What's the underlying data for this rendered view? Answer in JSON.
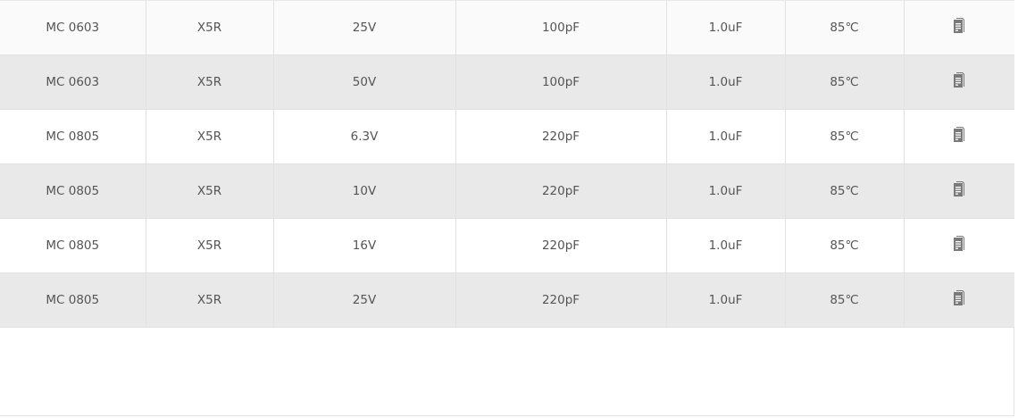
{
  "table": {
    "rows": [
      {
        "series": "MC 0603",
        "dielectric": "X5R",
        "voltage": "25V",
        "cap_min": "100pF",
        "cap_max": "1.0uF",
        "temp": "85℃",
        "icon": "document-icon"
      },
      {
        "series": "MC 0603",
        "dielectric": "X5R",
        "voltage": "50V",
        "cap_min": "100pF",
        "cap_max": "1.0uF",
        "temp": "85℃",
        "icon": "document-icon"
      },
      {
        "series": "MC 0805",
        "dielectric": "X5R",
        "voltage": "6.3V",
        "cap_min": "220pF",
        "cap_max": "1.0uF",
        "temp": "85℃",
        "icon": "document-icon"
      },
      {
        "series": "MC 0805",
        "dielectric": "X5R",
        "voltage": "10V",
        "cap_min": "220pF",
        "cap_max": "1.0uF",
        "temp": "85℃",
        "icon": "document-icon"
      },
      {
        "series": "MC 0805",
        "dielectric": "X5R",
        "voltage": "16V",
        "cap_min": "220pF",
        "cap_max": "1.0uF",
        "temp": "85℃",
        "icon": "document-icon"
      },
      {
        "series": "MC 0805",
        "dielectric": "X5R",
        "voltage": "25V",
        "cap_min": "220pF",
        "cap_max": "1.0uF",
        "temp": "85℃",
        "icon": "document-icon"
      }
    ]
  },
  "colors": {
    "row_alt": "#e9e9e9",
    "row_first": "#fafafa",
    "text": "#555555",
    "icon": "#7a7a7a"
  }
}
